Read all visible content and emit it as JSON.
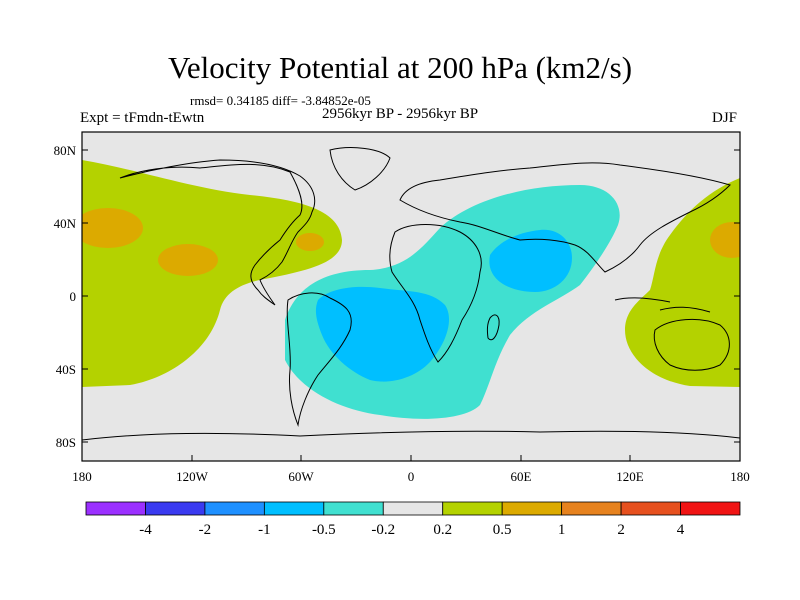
{
  "title": "Velocity Potential at 200 hPa (km2/s)",
  "stats": "rmsd= 0.34185  diff= -3.84852e-05",
  "experiment": "Expt = tFmdn-tEwtn",
  "period": "2956kyr BP - 2956kyr BP",
  "season": "DJF",
  "lat_labels": [
    "80N",
    "40N",
    "0",
    "40S",
    "80S"
  ],
  "lon_labels": [
    "180",
    "120W",
    "60W",
    "0",
    "60E",
    "120E",
    "180"
  ],
  "colorbar": {
    "colors": [
      "#9b30ff",
      "#3a3af0",
      "#1e90ff",
      "#00bfff",
      "#40e0d0",
      "#e6e6e6",
      "#b4d200",
      "#dcaa00",
      "#e6821e",
      "#e6501e",
      "#f01414"
    ],
    "labels": [
      "-4",
      "-2",
      "-1",
      "-0.5",
      "-0.2",
      "0.2",
      "0.5",
      "1",
      "2",
      "4"
    ]
  },
  "map_colors": {
    "background": "#e6e6e6",
    "positive_light": "#b4d200",
    "positive_strong": "#dcaa00",
    "negative_light": "#40e0d0",
    "negative_strong": "#00bfff",
    "coastline": "#000000"
  }
}
